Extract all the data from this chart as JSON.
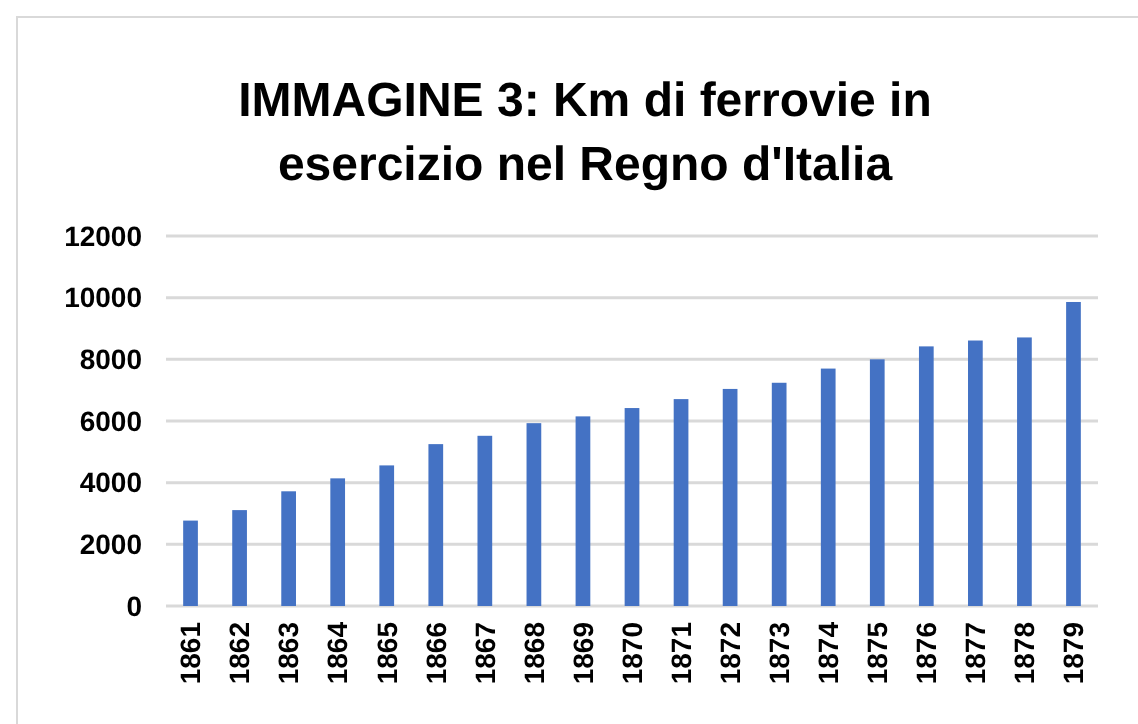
{
  "chart_data": {
    "type": "bar",
    "title": "IMMAGINE 3: Km di ferrovie in esercizio nel Regno d'Italia",
    "categories": [
      "1861",
      "1862",
      "1863",
      "1864",
      "1865",
      "1866",
      "1867",
      "1868",
      "1869",
      "1870",
      "1871",
      "1872",
      "1873",
      "1874",
      "1875",
      "1876",
      "1877",
      "1878",
      "1879"
    ],
    "values": [
      2770,
      3110,
      3720,
      4140,
      4560,
      5250,
      5520,
      5930,
      6150,
      6420,
      6710,
      7040,
      7240,
      7700,
      8000,
      8420,
      8610,
      8710,
      9860
    ],
    "color": "#4472c4",
    "ylim": [
      0,
      12000
    ],
    "yticks": [
      0,
      2000,
      4000,
      6000,
      8000,
      10000,
      12000
    ],
    "grid": "y"
  }
}
